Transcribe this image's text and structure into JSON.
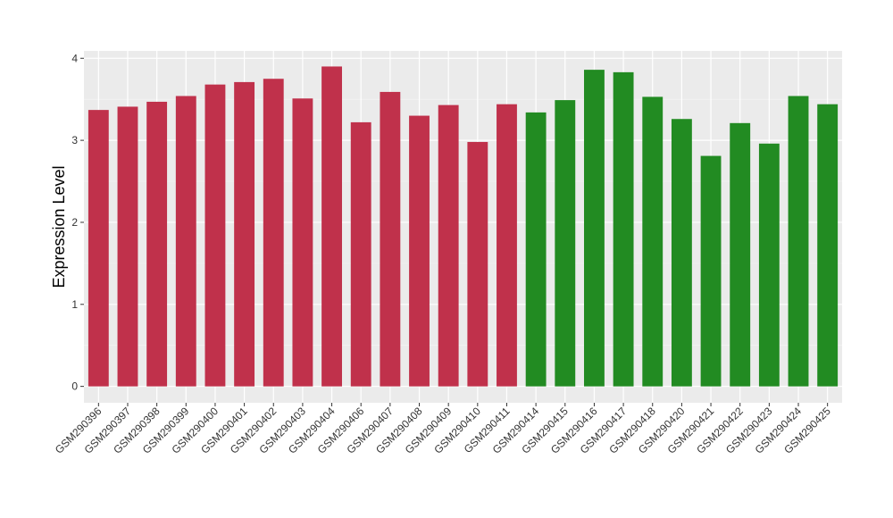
{
  "chart_data": {
    "type": "bar",
    "title": "",
    "xlabel": "",
    "ylabel": "Expression Level",
    "ylim": [
      -0.2,
      4.09
    ],
    "yticks": [
      0,
      1,
      2,
      3,
      4
    ],
    "grid": true,
    "legend": "none",
    "colors": {
      "panel_bg": "#EBEBEB",
      "grid_major": "#FFFFFF",
      "grid_minor": "#F5F5F5",
      "group_a": "#C0314B",
      "group_b": "#228B22"
    },
    "categories": [
      "GSM290396",
      "GSM290397",
      "GSM290398",
      "GSM290399",
      "GSM290400",
      "GSM290401",
      "GSM290402",
      "GSM290403",
      "GSM290404",
      "GSM290406",
      "GSM290407",
      "GSM290408",
      "GSM290409",
      "GSM290410",
      "GSM290411",
      "GSM290414",
      "GSM290415",
      "GSM290416",
      "GSM290417",
      "GSM290418",
      "GSM290420",
      "GSM290421",
      "GSM290422",
      "GSM290423",
      "GSM290424",
      "GSM290425"
    ],
    "values": [
      3.37,
      3.41,
      3.47,
      3.54,
      3.68,
      3.71,
      3.75,
      3.51,
      3.9,
      3.22,
      3.59,
      3.3,
      3.43,
      2.98,
      3.44,
      3.34,
      3.49,
      3.86,
      3.83,
      3.53,
      3.26,
      2.81,
      3.21,
      2.96,
      3.54,
      3.44
    ],
    "bar_colors": [
      "#C0314B",
      "#C0314B",
      "#C0314B",
      "#C0314B",
      "#C0314B",
      "#C0314B",
      "#C0314B",
      "#C0314B",
      "#C0314B",
      "#C0314B",
      "#C0314B",
      "#C0314B",
      "#C0314B",
      "#C0314B",
      "#C0314B",
      "#228B22",
      "#228B22",
      "#228B22",
      "#228B22",
      "#228B22",
      "#228B22",
      "#228B22",
      "#228B22",
      "#228B22",
      "#228B22",
      "#228B22"
    ]
  }
}
